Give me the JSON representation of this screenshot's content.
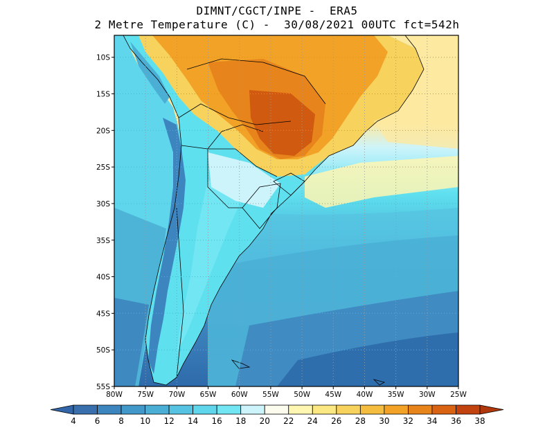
{
  "header": {
    "line1": "DIMNT/CGCT/INPE -  ERA5",
    "line2": "2 Metre Temperature (C) -  30/08/2021 00UTC fct=542h"
  },
  "map": {
    "lon_range": [
      -80,
      -25
    ],
    "lat_range": [
      -55,
      -7
    ],
    "lat_ticks": [
      {
        "value": -10,
        "label": "10S"
      },
      {
        "value": -15,
        "label": "15S"
      },
      {
        "value": -20,
        "label": "20S"
      },
      {
        "value": -25,
        "label": "25S"
      },
      {
        "value": -30,
        "label": "30S"
      },
      {
        "value": -35,
        "label": "35S"
      },
      {
        "value": -40,
        "label": "40S"
      },
      {
        "value": -45,
        "label": "45S"
      },
      {
        "value": -50,
        "label": "50S"
      },
      {
        "value": -55,
        "label": "55S"
      }
    ],
    "lon_ticks": [
      {
        "value": -80,
        "label": "80W"
      },
      {
        "value": -75,
        "label": "75W"
      },
      {
        "value": -70,
        "label": "70W"
      },
      {
        "value": -65,
        "label": "65W"
      },
      {
        "value": -60,
        "label": "60W"
      },
      {
        "value": -55,
        "label": "55W"
      },
      {
        "value": -50,
        "label": "50W"
      },
      {
        "value": -45,
        "label": "45W"
      },
      {
        "value": -40,
        "label": "40W"
      },
      {
        "value": -35,
        "label": "35W"
      },
      {
        "value": -30,
        "label": "30W"
      },
      {
        "value": -25,
        "label": "25W"
      }
    ],
    "colors": {
      "ocean_cold": "#2e6aab",
      "ocean_mid": "#3d98c8",
      "cyan": "#5fe0ef",
      "pale_cyan": "#cdf4fb",
      "land_yellow": "#fff1a6",
      "orange": "#f5a52a",
      "dark_orange": "#cf5a10",
      "coast": "#000000",
      "grid": "#999999"
    }
  },
  "colorbar": {
    "labels": [
      "4",
      "6",
      "8",
      "10",
      "12",
      "14",
      "16",
      "18",
      "20",
      "22",
      "24",
      "26",
      "28",
      "30",
      "32",
      "34",
      "36",
      "38"
    ],
    "colors": [
      "#3a6fae",
      "#3d85be",
      "#4198c9",
      "#4aaed5",
      "#55c3e1",
      "#5fd6ec",
      "#73e6f3",
      "#cdf4fb",
      "#fbfbee",
      "#fff6b2",
      "#fbe882",
      "#f7d35e",
      "#f4bd3f",
      "#f1a227",
      "#e7841b",
      "#d96213",
      "#c34310"
    ],
    "low_color": "#3366a8",
    "high_color": "#b1380c"
  }
}
